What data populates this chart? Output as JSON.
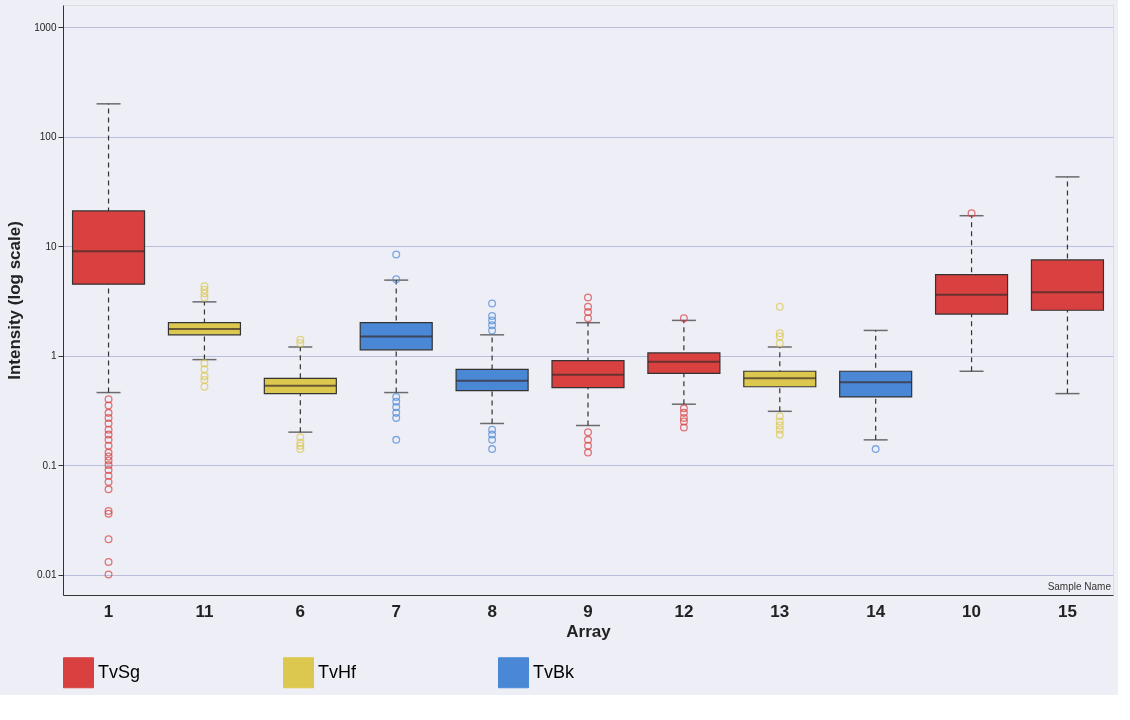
{
  "chart_data": {
    "type": "box",
    "xlabel": "Array",
    "ylabel": "Intensity (log scale)",
    "categories": [
      "1",
      "11",
      "6",
      "7",
      "8",
      "9",
      "12",
      "13",
      "14",
      "10",
      "15"
    ],
    "ylim": [
      0.0065,
      1600
    ],
    "yticks": [
      0.01,
      0.1,
      1,
      10,
      100,
      1000
    ],
    "log": "y",
    "grid": "y",
    "legend": "bottom",
    "annotations": [
      "Sample Name"
    ],
    "series": [
      {
        "name": "TvSg",
        "color": "#d94141",
        "boxes": [
          {
            "low": 0.46,
            "q1": 4.5,
            "median": 9,
            "q3": 21,
            "high": 200,
            "outliers": [
              0.4,
              0.35,
              0.3,
              0.27,
              0.24,
              0.21,
              0.19,
              0.17,
              0.15,
              0.13,
              0.12,
              0.11,
              0.1,
              0.09,
              0.08,
              0.07,
              0.06,
              0.038,
              0.036,
              0.021,
              0.013,
              0.01
            ]
          },
          null,
          null,
          null,
          null,
          {
            "low": 0.23,
            "q1": 0.51,
            "median": 0.67,
            "q3": 0.9,
            "high": 2.0,
            "outliers": [
              2.2,
              2.5,
              2.8,
              3.4,
              0.2,
              0.17,
              0.15,
              0.13
            ]
          },
          {
            "low": 0.36,
            "q1": 0.69,
            "median": 0.88,
            "q3": 1.06,
            "high": 2.1,
            "outliers": [
              2.2,
              0.33,
              0.3,
              0.27,
              0.25,
              0.22
            ]
          },
          null,
          null,
          {
            "low": 0.72,
            "q1": 2.4,
            "median": 3.6,
            "q3": 5.5,
            "high": 19,
            "outliers": [
              20
            ]
          },
          {
            "low": 0.45,
            "q1": 2.6,
            "median": 3.8,
            "q3": 7.5,
            "high": 43
          }
        ]
      },
      {
        "name": "TvHf",
        "color": "#dcc84e",
        "boxes": [
          null,
          {
            "low": 0.92,
            "q1": 1.55,
            "median": 1.75,
            "q3": 2.0,
            "high": 3.1,
            "outliers": [
              3.4,
              3.7,
              4.0,
              4.3,
              0.85,
              0.75,
              0.65,
              0.6,
              0.52
            ]
          },
          {
            "low": 0.2,
            "q1": 0.45,
            "median": 0.53,
            "q3": 0.62,
            "high": 1.2,
            "outliers": [
              1.3,
              1.4,
              0.18,
              0.16,
              0.15,
              0.14
            ]
          },
          null,
          null,
          null,
          null,
          {
            "low": 0.31,
            "q1": 0.52,
            "median": 0.62,
            "q3": 0.72,
            "high": 1.2,
            "outliers": [
              1.3,
              1.5,
              1.6,
              2.8,
              0.28,
              0.25,
              0.23,
              0.21,
              0.19
            ]
          },
          null,
          null,
          null
        ]
      },
      {
        "name": "TvBk",
        "color": "#4a88d6",
        "boxes": [
          null,
          null,
          null,
          {
            "low": 0.46,
            "q1": 1.13,
            "median": 1.5,
            "q3": 2.0,
            "high": 4.9,
            "outliers": [
              5.0,
              8.4,
              0.42,
              0.38,
              0.34,
              0.3,
              0.27,
              0.17
            ]
          },
          {
            "low": 0.24,
            "q1": 0.48,
            "median": 0.59,
            "q3": 0.75,
            "high": 1.55,
            "outliers": [
              1.7,
              1.9,
              2.1,
              2.3,
              3.0,
              0.21,
              0.19,
              0.17,
              0.14
            ]
          },
          null,
          null,
          null,
          {
            "low": 0.17,
            "q1": 0.42,
            "median": 0.57,
            "q3": 0.72,
            "high": 1.7,
            "outliers": [
              0.14
            ]
          },
          null,
          null
        ]
      }
    ]
  }
}
